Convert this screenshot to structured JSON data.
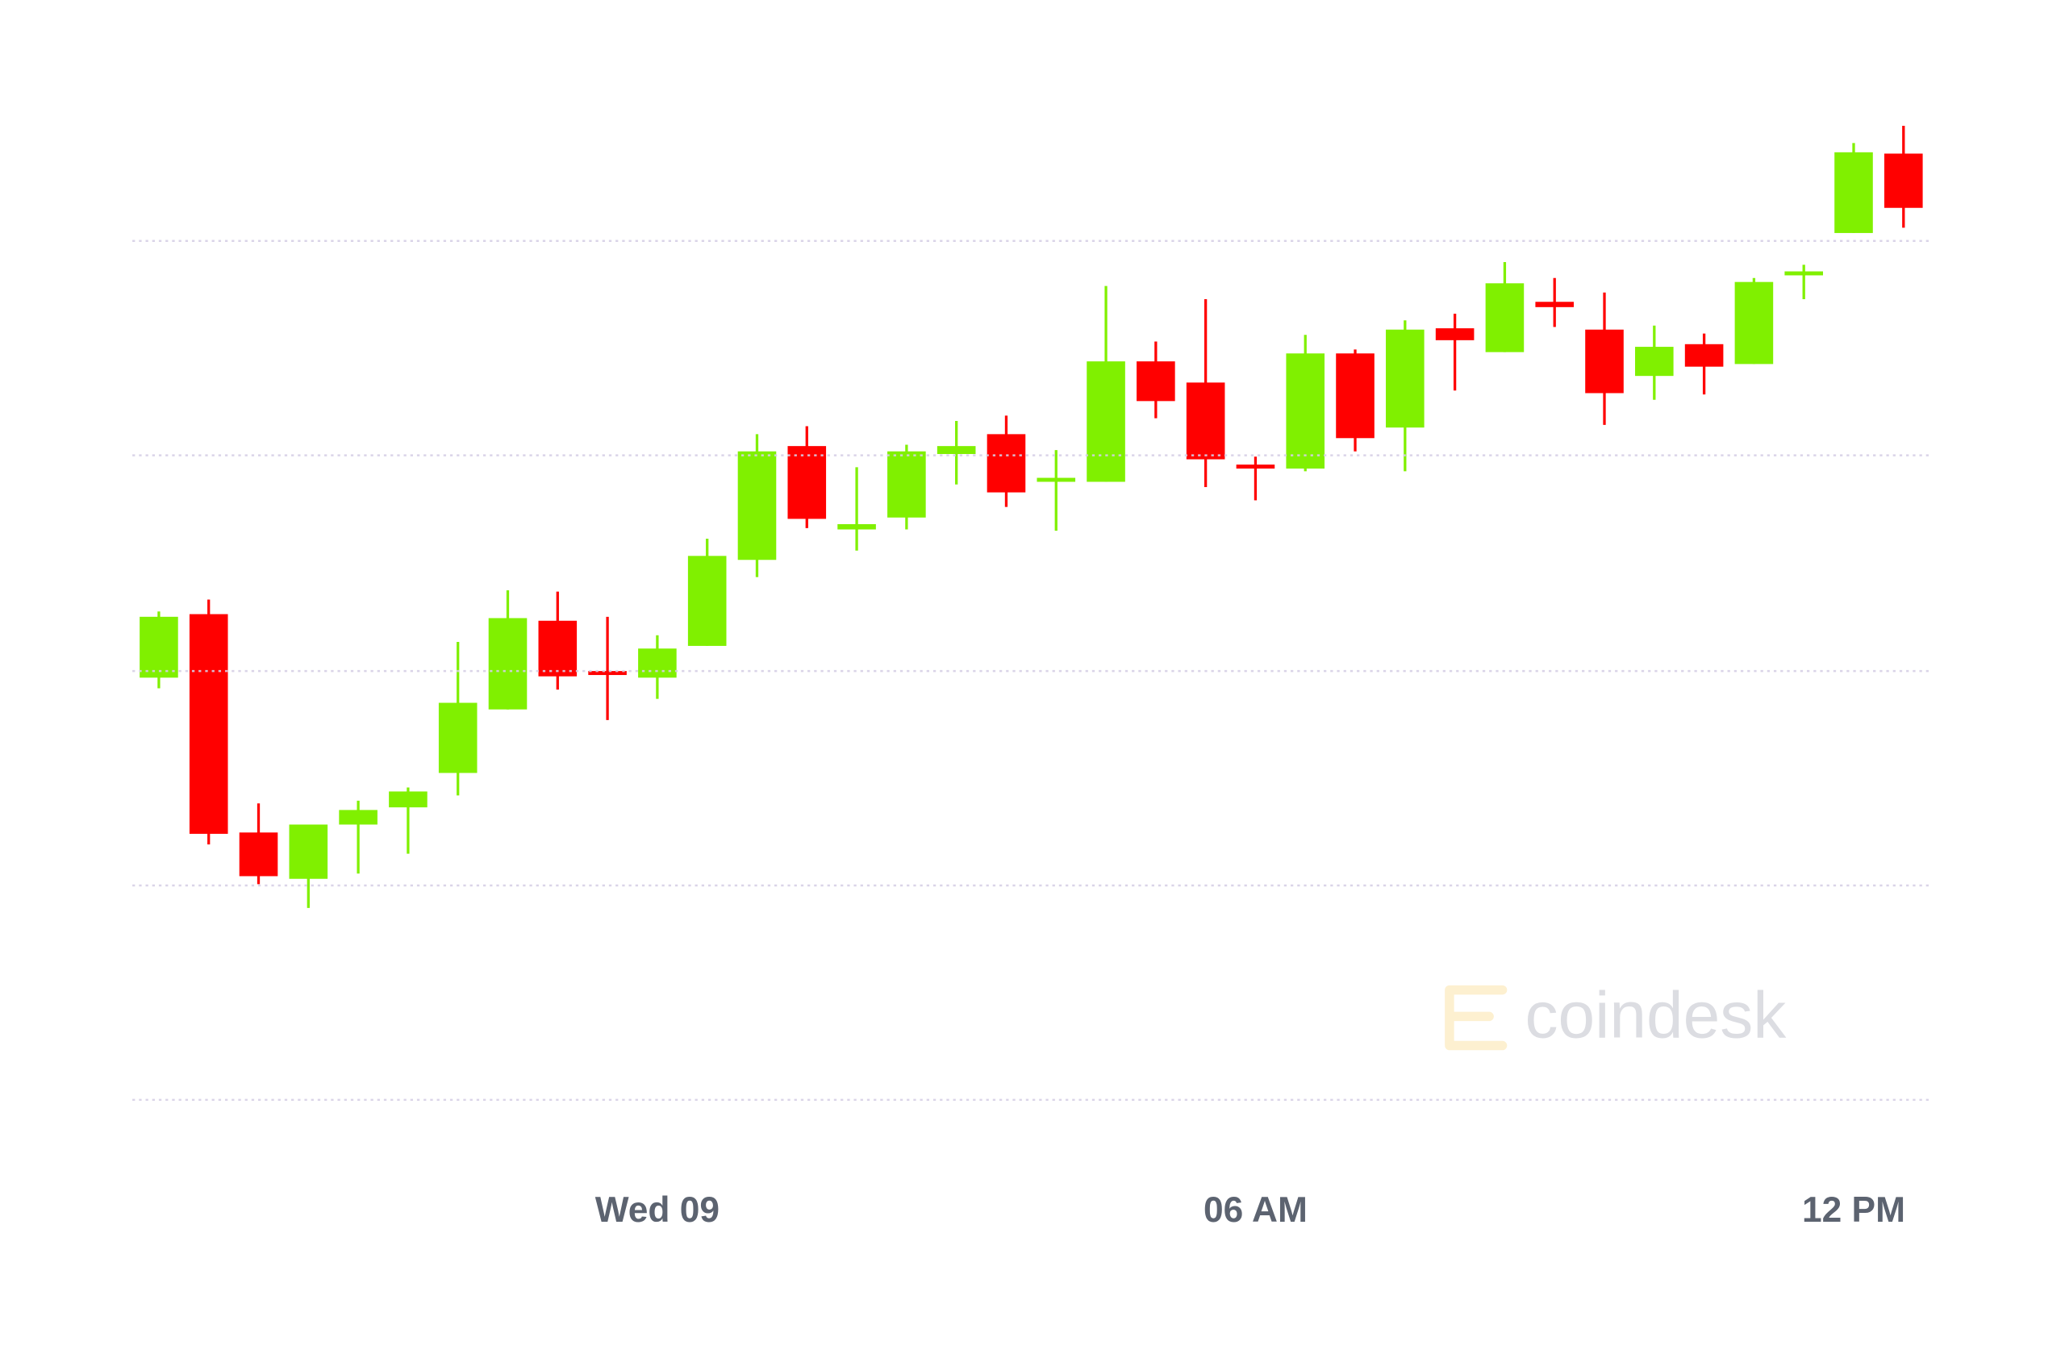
{
  "chart_data": {
    "type": "candlestick",
    "categories": [
      null,
      null,
      null,
      null,
      null,
      null,
      null,
      null,
      null,
      null,
      "Wed 09",
      null,
      null,
      null,
      null,
      null,
      null,
      null,
      null,
      null,
      null,
      null,
      "06 AM",
      null,
      null,
      null,
      null,
      null,
      null,
      null,
      null,
      null,
      null,
      null,
      "12 PM",
      null
    ],
    "open": [
      319,
      367,
      202,
      167,
      208,
      221,
      247,
      295,
      362,
      324,
      319,
      343,
      408,
      494,
      431,
      440,
      488,
      503,
      467,
      467,
      558,
      542,
      480,
      477,
      564,
      508,
      583,
      565,
      603,
      582,
      547,
      571,
      556,
      624,
      655,
      715
    ],
    "high": [
      369,
      378,
      224,
      208,
      226,
      236,
      346,
      385,
      384,
      365,
      351,
      424,
      503,
      509,
      478,
      495,
      513,
      517,
      491,
      615,
      573,
      605,
      486,
      578,
      567,
      589,
      594,
      633,
      621,
      610,
      585,
      579,
      621,
      631,
      723,
      736
    ],
    "low": [
      311,
      193,
      163,
      145,
      171,
      186,
      230,
      295,
      310,
      287,
      303,
      343,
      395,
      432,
      415,
      431,
      465,
      448,
      430,
      467,
      515,
      463,
      453,
      475,
      490,
      475,
      536,
      565,
      584,
      510,
      529,
      533,
      556,
      605,
      655,
      659
    ],
    "close": [
      365,
      201,
      169,
      208,
      219,
      233,
      300,
      364,
      320,
      322,
      341,
      411,
      490,
      439,
      435,
      490,
      494,
      459,
      470,
      558,
      528,
      484,
      478,
      564,
      500,
      582,
      574,
      617,
      599,
      534,
      569,
      554,
      618,
      626,
      716,
      674
    ],
    "up_color": "#80f000",
    "down_color": "#ff0000",
    "ylim": [
      0,
      760
    ],
    "yticks": [
      0,
      162,
      324,
      487,
      649
    ],
    "grid": true,
    "watermark": "coindesk"
  }
}
